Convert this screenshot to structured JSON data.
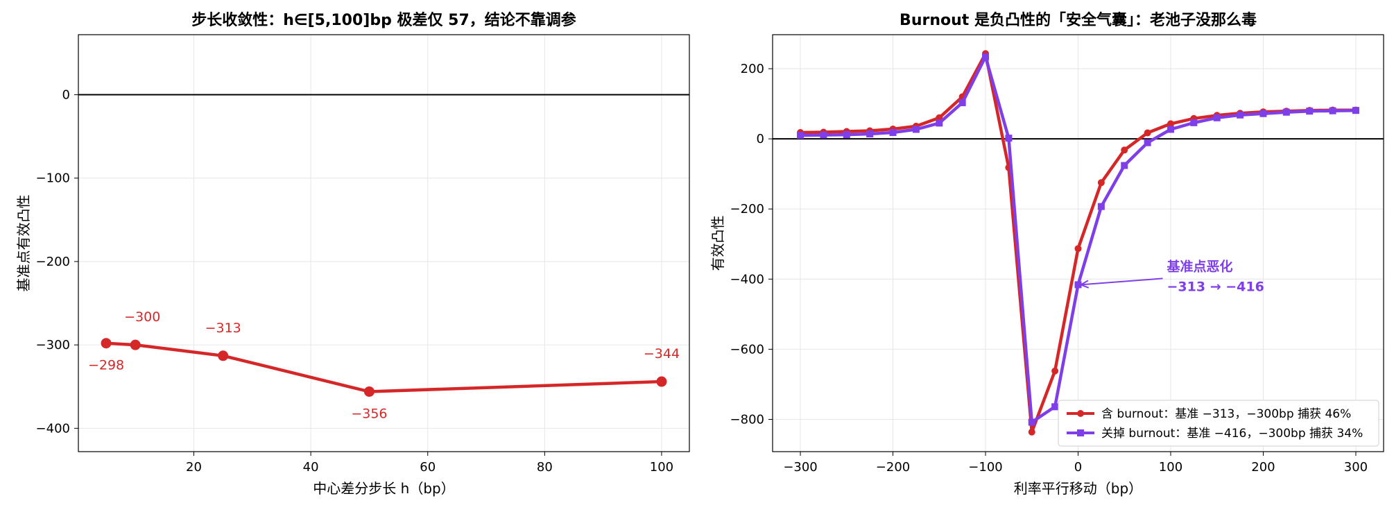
{
  "chart_data": [
    {
      "type": "line",
      "title": "步长收敛性：h∈[5,100]bp 极差仅 57，结论不靠调参",
      "xlabel": "中心差分步长 h（bp）",
      "ylabel": "基准点有效凸性",
      "xlim": [
        0.25,
        104.75
      ],
      "ylim": [
        -428,
        72
      ],
      "xticks": [
        20,
        40,
        60,
        80,
        100
      ],
      "yticks": [
        0,
        -100,
        -200,
        -300,
        -400
      ],
      "ytick_labels": [
        "0",
        "−100",
        "−200",
        "−300",
        "−400"
      ],
      "grid": true,
      "zero_line": true,
      "series": [
        {
          "color": "#d62728",
          "x": [
            5,
            10,
            25,
            50,
            100
          ],
          "values": [
            -298,
            -300,
            -313,
            -356,
            -344
          ],
          "data_labels": [
            "−298",
            "−300",
            "−313",
            "−356",
            "−344"
          ]
        }
      ]
    },
    {
      "type": "line",
      "title": "Burnout 是负凸性的「安全气囊」：老池子没那么毒",
      "xlabel": "利率平行移动（bp）",
      "ylabel": "有效凸性",
      "xlim": [
        -330,
        330
      ],
      "ylim": [
        -892,
        297
      ],
      "xticks": [
        -300,
        -200,
        -100,
        0,
        100,
        200,
        300
      ],
      "xtick_labels": [
        "−300",
        "−200",
        "−100",
        "0",
        "100",
        "200",
        "300"
      ],
      "yticks": [
        200,
        0,
        -200,
        -400,
        -600,
        -800
      ],
      "ytick_labels": [
        "200",
        "0",
        "−200",
        "−400",
        "−600",
        "−800"
      ],
      "grid": true,
      "zero_line": true,
      "legend_position": "lower-right",
      "x": [
        -300,
        -275,
        -250,
        -225,
        -200,
        -175,
        -150,
        -125,
        -100,
        -75,
        -50,
        -25,
        0,
        25,
        50,
        75,
        100,
        125,
        150,
        175,
        200,
        225,
        250,
        275,
        300
      ],
      "series": [
        {
          "name": "含 burnout：基准 −313，−300bp 捕获 46%",
          "color": "#d62728",
          "marker": "circle",
          "values": [
            18,
            19,
            21,
            23,
            28,
            36,
            60,
            120,
            243,
            -82,
            -836,
            -662,
            -313,
            -125,
            -32,
            17,
            43,
            58,
            67,
            73,
            77,
            79,
            81,
            82,
            82
          ]
        },
        {
          "name": "关掉 burnout：基准 −416，−300bp 捕获 34%",
          "color": "#7f3fe8",
          "marker": "square",
          "values": [
            10,
            11,
            12,
            14,
            18,
            27,
            45,
            103,
            234,
            2,
            -808,
            -764,
            -416,
            -193,
            -76,
            -11,
            27,
            46,
            60,
            68,
            72,
            76,
            79,
            80,
            81
          ]
        }
      ],
      "annotation": {
        "line1": "基准点恶化",
        "line2": "−313 → −416",
        "color": "#7f3fe8",
        "target_x": 0,
        "target_y": -416
      }
    }
  ]
}
